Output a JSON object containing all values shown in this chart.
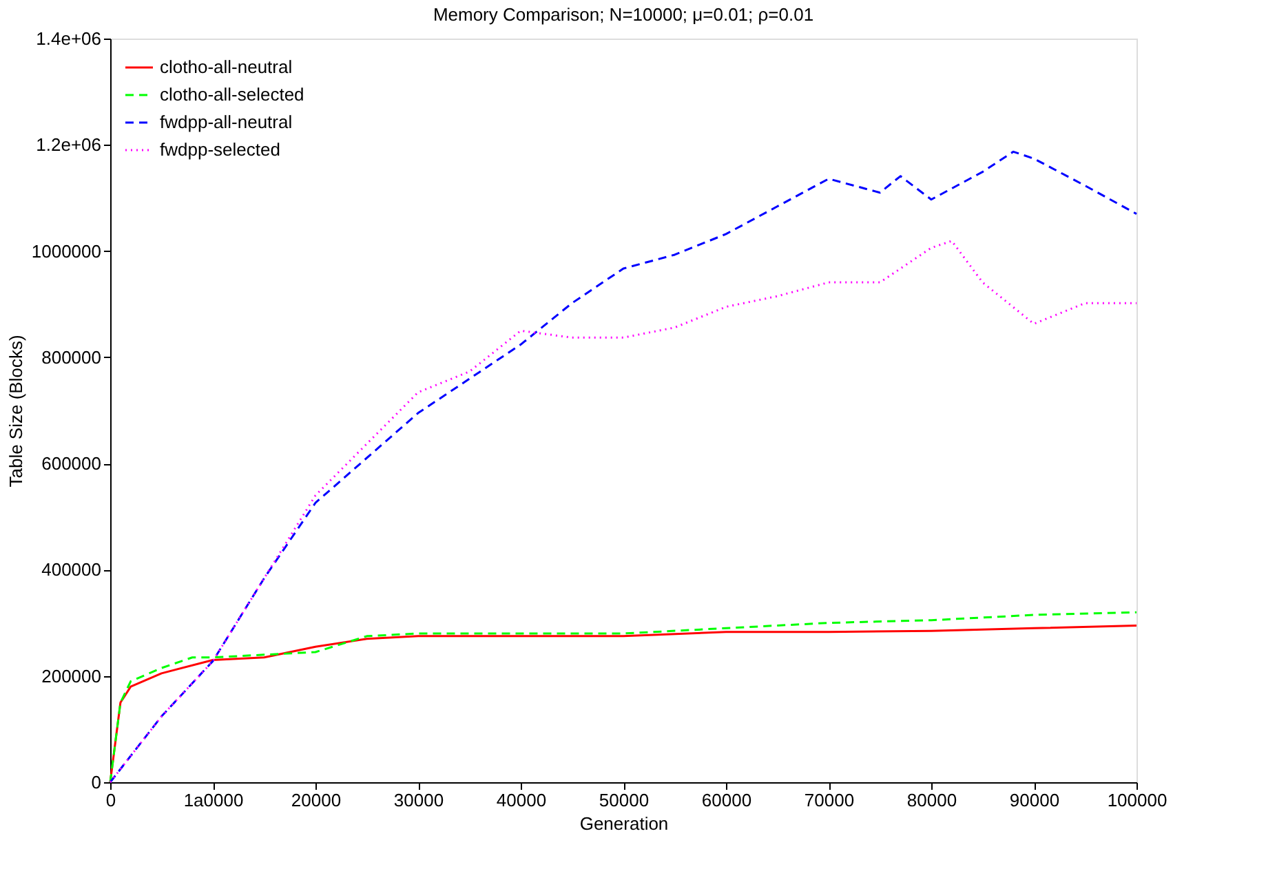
{
  "chart_data": {
    "type": "line",
    "title": "Memory Comparison; N=10000; μ=0.01; ρ=0.01",
    "xlabel": "Generation",
    "ylabel": "Table Size (Blocks)",
    "xlim": [
      0,
      100000
    ],
    "xticks": [
      0,
      {
        "value": 10000,
        "label": "1a0000"
      },
      20000,
      30000,
      40000,
      50000,
      60000,
      70000,
      80000,
      90000,
      100000
    ],
    "ylim": [
      0,
      1400000
    ],
    "yticks": [
      0,
      200000,
      400000,
      600000,
      800000,
      1000000,
      {
        "value": 1200000,
        "label": "1.2e+06"
      },
      {
        "value": 1400000,
        "label": "1.4e+06"
      }
    ],
    "grid": false,
    "legend": "top left",
    "marker": "none",
    "series": [
      {
        "name": "clotho-all-neutral",
        "color": "#ff0000",
        "line_style": "solid",
        "x": [
          0,
          1000,
          2000,
          5000,
          10000,
          15000,
          20000,
          25000,
          30000,
          40000,
          50000,
          60000,
          70000,
          80000,
          90000,
          100000
        ],
        "values": [
          0,
          150000,
          180000,
          205000,
          230000,
          235000,
          255000,
          270000,
          275000,
          275000,
          275000,
          283000,
          283000,
          285000,
          290000,
          295000
        ]
      },
      {
        "name": "clotho-all-selected",
        "color": "#00ff00",
        "line_style": "dashed",
        "x": [
          0,
          1000,
          2000,
          5000,
          8000,
          10000,
          15000,
          20000,
          25000,
          30000,
          40000,
          50000,
          60000,
          70000,
          80000,
          90000,
          100000
        ],
        "values": [
          0,
          150000,
          190000,
          215000,
          235000,
          235000,
          240000,
          245000,
          275000,
          280000,
          280000,
          280000,
          290000,
          300000,
          305000,
          315000,
          320000
        ]
      },
      {
        "name": "fwdpp-all-neutral",
        "color": "#0000ff",
        "line_style": "dashed",
        "x": [
          0,
          5000,
          10000,
          15000,
          20000,
          30000,
          40000,
          45000,
          50000,
          55000,
          60000,
          65000,
          70000,
          75000,
          77000,
          80000,
          85000,
          88000,
          90000,
          95000,
          100000
        ],
        "values": [
          0,
          124000,
          228000,
          384000,
          526000,
          695000,
          824000,
          902000,
          967000,
          993000,
          1032000,
          1084000,
          1136000,
          1110000,
          1141000,
          1097000,
          1149000,
          1187000,
          1174000,
          1123000,
          1070000
        ]
      },
      {
        "name": "fwdpp-selected",
        "color": "#ff00ff",
        "line_style": "dotted",
        "x": [
          0,
          5000,
          10000,
          15000,
          20000,
          30000,
          35000,
          40000,
          45000,
          50000,
          55000,
          60000,
          65000,
          70000,
          75000,
          80000,
          82000,
          85000,
          90000,
          95000,
          100000
        ],
        "values": [
          0,
          124000,
          228000,
          384000,
          540000,
          734000,
          773000,
          850000,
          837000,
          837000,
          856000,
          895000,
          915000,
          941000,
          941000,
          1006000,
          1019000,
          941000,
          863000,
          902000,
          902000
        ]
      }
    ]
  }
}
